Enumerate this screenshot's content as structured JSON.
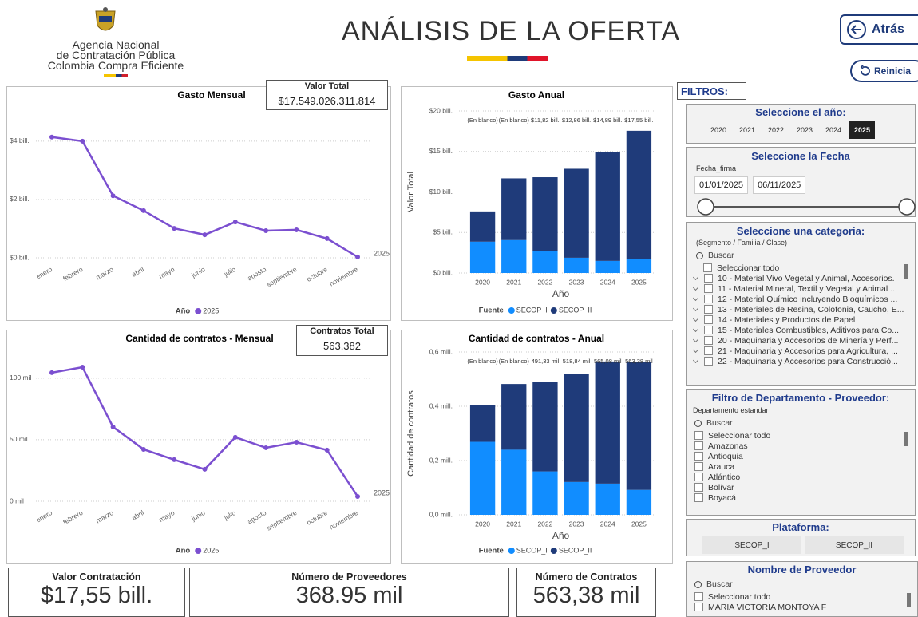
{
  "header": {
    "logo_lines": [
      "Agencia Nacional",
      "de Contratación Pública",
      "Colombia Compra Eficiente"
    ],
    "title": "ANÁLISIS DE LA OFERTA",
    "back_button": "Atrás",
    "reset_button": "Reinicia"
  },
  "chart_data": [
    {
      "type": "line",
      "title": "Gasto Mensual",
      "categories": [
        "enero",
        "febrero",
        "marzo",
        "abril",
        "mayo",
        "junio",
        "julio",
        "agosto",
        "septiembre",
        "octubre",
        "noviembre"
      ],
      "series": [
        {
          "name": "2025",
          "color": "#7b4fd0",
          "values": [
            4.14,
            4.0,
            2.13,
            1.62,
            1.01,
            0.79,
            1.23,
            0.93,
            0.96,
            0.66,
            0.03
          ]
        }
      ],
      "ylim": [
        0,
        4.6
      ],
      "yticks": [
        {
          "value": 0,
          "label": "$0 bill."
        },
        {
          "value": 2,
          "label": "$2 bill."
        },
        {
          "value": 4,
          "label": "$4 bill."
        }
      ],
      "legend_title": "Año",
      "grid": true
    },
    {
      "type": "bar",
      "stacked": true,
      "title": "Gasto Anual",
      "categories": [
        "2020",
        "2021",
        "2022",
        "2023",
        "2024",
        "2025"
      ],
      "series": [
        {
          "name": "SECOP_I",
          "color": "#118dff",
          "values": [
            3.86,
            4.06,
            2.67,
            1.88,
            1.49,
            1.68
          ]
        },
        {
          "name": "SECOP_II",
          "color": "#1f3b7a",
          "values": [
            3.74,
            7.62,
            9.15,
            10.98,
            13.4,
            15.87
          ]
        }
      ],
      "total_labels": [
        "(En blanco)",
        "(En blanco)",
        "$11,82 bill.",
        "$12,86 bill.",
        "$14,89 bill.",
        "$17,55 bill."
      ],
      "ylim": [
        0,
        20
      ],
      "yticks": [
        {
          "value": 0,
          "label": "$0 bill."
        },
        {
          "value": 5,
          "label": "$5 bill."
        },
        {
          "value": 10,
          "label": "$10 bill."
        },
        {
          "value": 15,
          "label": "$15 bill."
        },
        {
          "value": 20,
          "label": "$20 bill."
        }
      ],
      "y_label": "Valor Total",
      "x_label": "Año",
      "legend_title": "Fuente",
      "grid": true
    },
    {
      "type": "line",
      "title": "Cantidad de contratos - Mensual",
      "categories": [
        "enero",
        "febrero",
        "marzo",
        "abril",
        "mayo",
        "junio",
        "julio",
        "agosto",
        "septiembre",
        "octubre",
        "noviembre"
      ],
      "series": [
        {
          "name": "2025",
          "color": "#7b4fd0",
          "values": [
            104.5,
            109,
            60.4,
            42.2,
            33.8,
            26,
            52,
            43.5,
            48,
            41.6,
            3.9
          ]
        }
      ],
      "ylim": [
        0,
        120
      ],
      "yticks": [
        {
          "value": 0,
          "label": "0 mil"
        },
        {
          "value": 50,
          "label": "50 mil"
        },
        {
          "value": 100,
          "label": "100 mil"
        }
      ],
      "legend_title": "Año",
      "grid": true
    },
    {
      "type": "bar",
      "stacked": true,
      "title": "Cantidad de contratos - Anual",
      "categories": [
        "2020",
        "2021",
        "2022",
        "2023",
        "2024",
        "2025"
      ],
      "series": [
        {
          "name": "SECOP_I",
          "color": "#118dff",
          "values": [
            0.269,
            0.24,
            0.16,
            0.121,
            0.115,
            0.092
          ]
        },
        {
          "name": "SECOP_II",
          "color": "#1f3b7a",
          "values": [
            0.136,
            0.242,
            0.331,
            0.398,
            0.45,
            0.471
          ]
        }
      ],
      "total_labels": [
        "(En blanco)",
        "(En blanco)",
        "491,33 mil",
        "518,84 mil",
        "565,08 mil",
        "563,38 mil"
      ],
      "ylim": [
        0,
        0.6
      ],
      "yticks": [
        {
          "value": 0,
          "label": "0,0 mill."
        },
        {
          "value": 0.2,
          "label": "0,2 mill."
        },
        {
          "value": 0.4,
          "label": "0,4 mill."
        },
        {
          "value": 0.6,
          "label": "0,6 mill."
        }
      ],
      "y_label": "Cantidad de contratos",
      "x_label": "Año",
      "legend_title": "Fuente",
      "grid": true
    }
  ],
  "summary_boxes": [
    {
      "label": "Valor Total",
      "value": "$17.549.026.311.814"
    },
    {
      "label": "Contratos Total",
      "value": "563.382"
    }
  ],
  "kpi_cards": [
    {
      "label": "Valor Contratación",
      "value": "$17,55 bill."
    },
    {
      "label": "Número de Proveedores",
      "value": "368.95 mil"
    },
    {
      "label": "Número de Contratos",
      "value": "563,38 mil"
    }
  ],
  "filters": {
    "title": "FILTROS:",
    "year": {
      "title": "Seleccione el año:",
      "options": [
        "2020",
        "2021",
        "2022",
        "2023",
        "2024",
        "2025"
      ],
      "selected": "2025"
    },
    "date": {
      "title": "Seleccione la Fecha",
      "field": "Fecha_firma",
      "start": "01/01/2025",
      "end": "06/11/2025"
    },
    "category": {
      "title": "Seleccione una categoria:",
      "subtitle": "(Segmento / Familia / Clase)",
      "search": "Buscar",
      "select_all": "Seleccionar todo",
      "items": [
        "10 - Material Vivo Vegetal y Animal, Accesorios.",
        "11 - Material Mineral, Textil y Vegetal y Animal ...",
        "12 - Material Químico incluyendo Bioquímicos ...",
        "13 - Materiales de Resina, Colofonia, Caucho, E...",
        "14 - Materiales y Productos de Papel",
        "15 - Materiales Combustibles, Aditivos para Co...",
        "20 - Maquinaria y Accesorios de Minería y Perf...",
        "21 - Maquinaria y Accesorios para Agricultura, ...",
        "22 - Maquinaria y Accesorios para Construcció..."
      ]
    },
    "department": {
      "title": "Filtro de Departamento - Proveedor:",
      "field": "Departamento estandar",
      "search": "Buscar",
      "select_all": "Seleccionar todo",
      "items": [
        "Amazonas",
        "Antioquia",
        "Arauca",
        "Atlántico",
        "Bolívar",
        "Boyacá"
      ]
    },
    "platform": {
      "title": "Plataforma:",
      "options": [
        "SECOP_I",
        "SECOP_II"
      ]
    },
    "provider": {
      "title": "Nombre de Proveedor",
      "search": "Buscar",
      "select_all": "Seleccionar todo",
      "items": [
        "MARIA VICTORIA MONTOYA F"
      ]
    }
  }
}
